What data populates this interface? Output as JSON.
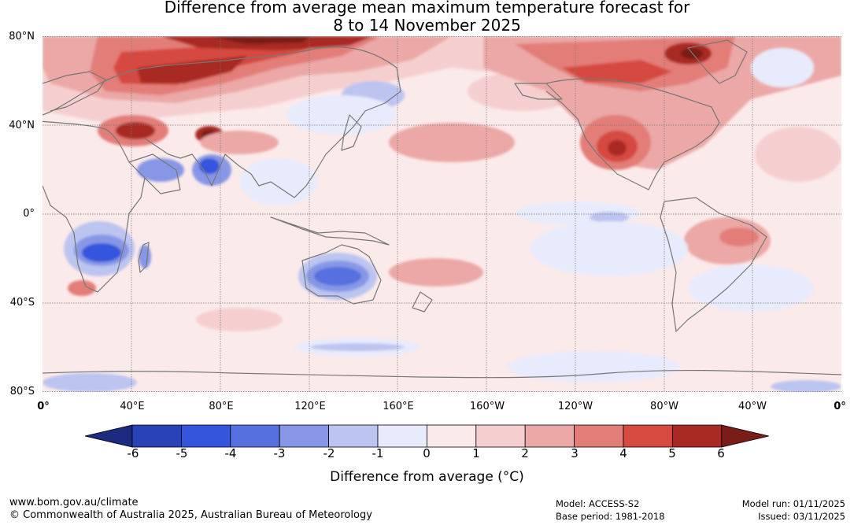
{
  "title": {
    "line1": "Difference from average mean maximum temperature forecast for",
    "line2": "8 to 14 November 2025"
  },
  "map": {
    "lat_labels": [
      "80°N",
      "40°N",
      "0°",
      "40°S",
      "80°S"
    ],
    "lon_labels": [
      "0°",
      "40°E",
      "80°E",
      "120°E",
      "160°E",
      "160°W",
      "120°W",
      "80°W",
      "40°W",
      "0°"
    ],
    "background_color": "#fbeaea",
    "anomalies": [
      {
        "region": "Northern Europe / Siberia",
        "lon": 80,
        "lat": 70,
        "anomaly": 4
      },
      {
        "region": "Central Siberia",
        "lon": 100,
        "lat": 78,
        "anomaly": 5
      },
      {
        "region": "Central Asia",
        "lon": 40,
        "lat": 38,
        "anomaly": 4
      },
      {
        "region": "Tibet",
        "lon": 75,
        "lat": 36,
        "anomaly": 6
      },
      {
        "region": "India",
        "lon": 75,
        "lat": 22,
        "anomaly": -3
      },
      {
        "region": "Southern Africa",
        "lon": 23,
        "lat": -18,
        "anomaly": -4
      },
      {
        "region": "Australia",
        "lon": 133,
        "lat": -27,
        "anomaly": -3
      },
      {
        "region": "Southwest USA",
        "lon": -102,
        "lat": 32,
        "anomaly": 5
      },
      {
        "region": "Alaska / Canada",
        "lon": -110,
        "lat": 65,
        "anomaly": 4
      },
      {
        "region": "Greenland",
        "lon": -72,
        "lat": 75,
        "anomaly": 5
      },
      {
        "region": "Eastern Brazil",
        "lon": -45,
        "lat": -10,
        "anomaly": 2
      }
    ]
  },
  "colorbar": {
    "ticks": [
      "-6",
      "-5",
      "-4",
      "-3",
      "-2",
      "-1",
      "0",
      "1",
      "2",
      "3",
      "4",
      "5",
      "6"
    ],
    "colors": [
      "#1c2a80",
      "#2a42b8",
      "#3455dc",
      "#5670e0",
      "#8797e6",
      "#bcc4f0",
      "#e8ebfb",
      "#fbeaea",
      "#f5cfcf",
      "#eba8a6",
      "#e37d78",
      "#d64a3f",
      "#a82a22",
      "#7a1d18"
    ],
    "label": "Difference from average (°C)"
  },
  "footer": {
    "url": "www.bom.gov.au/climate",
    "copyright": "© Commonwealth of Australia 2025, Australian Bureau of Meteorology",
    "model": "Model: ACCESS-S2",
    "base_period": "Base period: 1981-2018",
    "model_run": "Model run: 01/11/2025",
    "issued": "Issued: 03/11/2025"
  }
}
